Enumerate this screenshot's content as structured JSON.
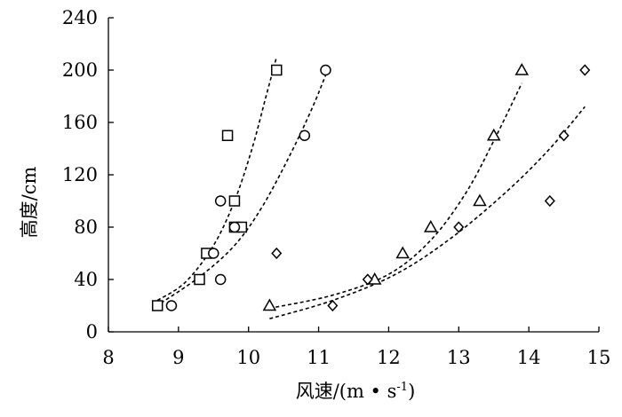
{
  "chart_data": {
    "type": "scatter",
    "xlabel": "风速/(m • s",
    "xlabel_sup": "-1",
    "xlabel_close": ")",
    "ylabel": "高度/cm",
    "xlim": [
      8,
      15
    ],
    "ylim": [
      0,
      240
    ],
    "xticks": [
      "8",
      "9",
      "10",
      "11",
      "12",
      "13",
      "14",
      "15"
    ],
    "yticks": [
      "0",
      "40",
      "80",
      "120",
      "160",
      "200",
      "240"
    ],
    "grid": false,
    "series": [
      {
        "marker": "square",
        "points": [
          [
            8.7,
            20
          ],
          [
            9.3,
            40
          ],
          [
            9.4,
            60
          ],
          [
            9.8,
            80
          ],
          [
            9.9,
            80
          ],
          [
            9.8,
            100
          ],
          [
            9.7,
            150
          ],
          [
            10.4,
            200
          ]
        ],
        "trend": [
          [
            8.7,
            24
          ],
          [
            9.1,
            38
          ],
          [
            9.5,
            66
          ],
          [
            9.8,
            100
          ],
          [
            10.05,
            140
          ],
          [
            10.25,
            180
          ],
          [
            10.4,
            210
          ]
        ]
      },
      {
        "marker": "circle",
        "points": [
          [
            8.9,
            20
          ],
          [
            9.6,
            40
          ],
          [
            9.5,
            60
          ],
          [
            9.6,
            100
          ],
          [
            9.8,
            80
          ],
          [
            10.8,
            150
          ],
          [
            11.1,
            200
          ]
        ],
        "trend": [
          [
            8.75,
            22
          ],
          [
            9.3,
            42
          ],
          [
            9.8,
            66
          ],
          [
            10.2,
            96
          ],
          [
            10.6,
            136
          ],
          [
            10.9,
            170
          ],
          [
            11.1,
            196
          ]
        ]
      },
      {
        "marker": "triangle",
        "points": [
          [
            10.3,
            20
          ],
          [
            11.8,
            40
          ],
          [
            12.2,
            60
          ],
          [
            12.6,
            80
          ],
          [
            13.3,
            100
          ],
          [
            13.5,
            150
          ],
          [
            13.9,
            200
          ]
        ],
        "trend": [
          [
            10.3,
            18
          ],
          [
            11.2,
            28
          ],
          [
            12.0,
            44
          ],
          [
            12.6,
            70
          ],
          [
            13.1,
            106
          ],
          [
            13.5,
            146
          ],
          [
            13.9,
            190
          ]
        ]
      },
      {
        "marker": "diamond",
        "points": [
          [
            11.2,
            20
          ],
          [
            11.7,
            40
          ],
          [
            10.4,
            60
          ],
          [
            13.0,
            80
          ],
          [
            14.3,
            100
          ],
          [
            14.5,
            150
          ],
          [
            14.8,
            200
          ]
        ],
        "trend": [
          [
            10.3,
            10
          ],
          [
            11.2,
            24
          ],
          [
            12.1,
            44
          ],
          [
            12.9,
            72
          ],
          [
            13.7,
            108
          ],
          [
            14.3,
            140
          ],
          [
            14.8,
            172
          ]
        ]
      }
    ]
  }
}
